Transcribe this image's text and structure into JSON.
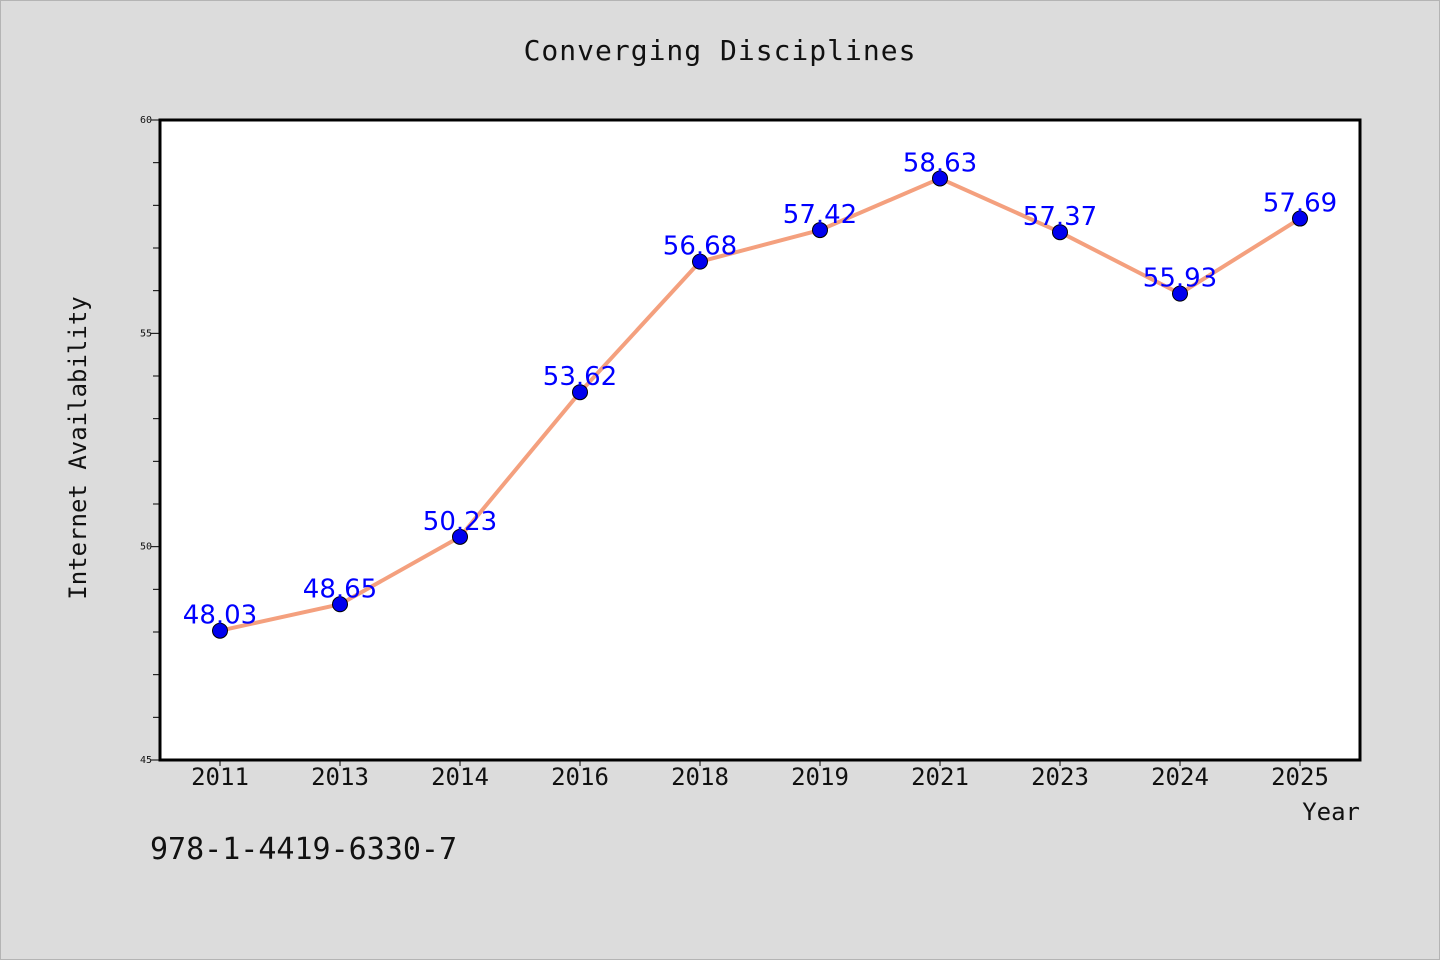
{
  "page": {
    "isbn": "978-1-4419-6330-7"
  },
  "chart_data": {
    "type": "line",
    "title": "Converging Disciplines",
    "xlabel": "Year",
    "ylabel": "Internet Availability",
    "categories": [
      "2011",
      "2013",
      "2014",
      "2016",
      "2018",
      "2019",
      "2021",
      "2023",
      "2024",
      "2025"
    ],
    "values": [
      48.03,
      48.65,
      50.23,
      53.62,
      56.68,
      57.42,
      58.63,
      57.37,
      55.93,
      57.69
    ],
    "data_labels": [
      "48.03",
      "48.65",
      "50.23",
      "53.62",
      "56.68",
      "57.42",
      "58.63",
      "57.37",
      "55.93",
      "57.69"
    ],
    "ylim": [
      45,
      60
    ],
    "yticks": [
      "45",
      "50",
      "55",
      "60"
    ],
    "grid": false,
    "legend": "none",
    "colors": {
      "line": "#f4a07e",
      "marker": "#0000ee",
      "label": "#0000ff",
      "background": "#dcdcdc",
      "plot_background": "#ffffff"
    }
  }
}
